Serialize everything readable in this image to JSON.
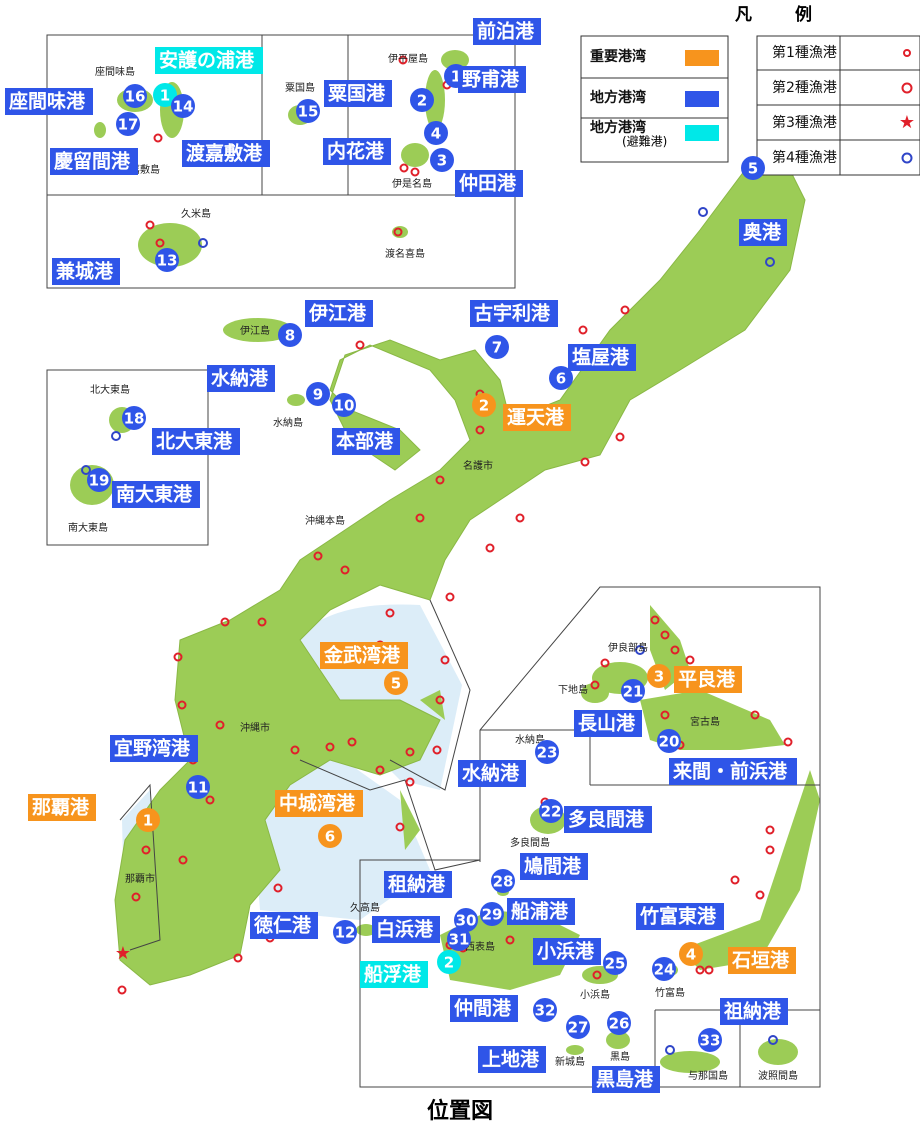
{
  "legend": {
    "title_left": "凡",
    "title_right": "例",
    "port_types": [
      {
        "label": "重要港湾",
        "color": "#f7941d"
      },
      {
        "label": "地方港湾",
        "color": "#2f55e8"
      },
      {
        "label": "地方港湾",
        "note": "(避難港)",
        "color": "#00e8e8"
      }
    ],
    "fishing_ports": [
      {
        "label": "第1種漁港",
        "symbol": "small-circle",
        "color": "#e0202a"
      },
      {
        "label": "第2種漁港",
        "symbol": "circle",
        "color": "#e0202a"
      },
      {
        "label": "第3種漁港",
        "symbol": "star",
        "color": "#e0202a"
      },
      {
        "label": "第4種漁港",
        "symbol": "circle",
        "color": "#2f45c8"
      }
    ]
  },
  "ports": [
    {
      "label": "運天港",
      "number": 2,
      "color": "#f7941d"
    },
    {
      "label": "金武湾港",
      "number": 5,
      "color": "#f7941d"
    },
    {
      "label": "中城湾港",
      "number": 6,
      "color": "#f7941d"
    },
    {
      "label": "那覇港",
      "number": 1,
      "color": "#f7941d"
    },
    {
      "label": "平良港",
      "number": 3,
      "color": "#f7941d"
    },
    {
      "label": "石垣港",
      "number": 4,
      "color": "#f7941d"
    },
    {
      "label": "安護の浦港",
      "number": 1,
      "color": "#00e8e8"
    },
    {
      "label": "船浮港",
      "number": 2,
      "color": "#00e8e8"
    },
    {
      "label": "前泊港",
      "number": 1,
      "color": "#2f55e8"
    },
    {
      "label": "野甫港",
      "number": 2,
      "color": "#2f55e8"
    },
    {
      "label": "仲田港",
      "number": 3,
      "color": "#2f55e8"
    },
    {
      "label": "内花港",
      "number": 4,
      "color": "#2f55e8"
    },
    {
      "label": "粟国港",
      "number": 15,
      "color": "#2f55e8"
    },
    {
      "label": "座間味港",
      "number": 16,
      "color": "#2f55e8"
    },
    {
      "label": "渡嘉敷港",
      "number": 14,
      "color": "#2f55e8"
    },
    {
      "label": "慶留間港",
      "number": 17,
      "color": "#2f55e8"
    },
    {
      "label": "兼城港",
      "number": 13,
      "color": "#2f55e8"
    },
    {
      "label": "奥港",
      "number": 5,
      "color": "#2f55e8"
    },
    {
      "label": "塩屋港",
      "number": 6,
      "color": "#2f55e8"
    },
    {
      "label": "古宇利港",
      "number": 7,
      "color": "#2f55e8"
    },
    {
      "label": "伊江港",
      "number": 8,
      "color": "#2f55e8"
    },
    {
      "label": "水納港",
      "number": 9,
      "color": "#2f55e8"
    },
    {
      "label": "本部港",
      "number": 10,
      "color": "#2f55e8"
    },
    {
      "label": "北大東港",
      "number": 18,
      "color": "#2f55e8"
    },
    {
      "label": "南大東港",
      "number": 19,
      "color": "#2f55e8"
    },
    {
      "label": "宜野湾港",
      "number": 11,
      "color": "#2f55e8"
    },
    {
      "label": "徳仁港",
      "number": 12,
      "color": "#2f55e8"
    },
    {
      "label": "長山港",
      "number": 21,
      "color": "#2f55e8"
    },
    {
      "label": "来間・前浜港",
      "number": 20,
      "color": "#2f55e8"
    },
    {
      "label": "水納港",
      "number": 23,
      "color": "#2f55e8"
    },
    {
      "label": "多良間港",
      "number": 22,
      "color": "#2f55e8"
    },
    {
      "label": "鳩間港",
      "number": 28,
      "color": "#2f55e8"
    },
    {
      "label": "船浦港",
      "number": 29,
      "color": "#2f55e8"
    },
    {
      "label": "租納港",
      "number": 30,
      "color": "#2f55e8"
    },
    {
      "label": "白浜港",
      "number": 31,
      "color": "#2f55e8"
    },
    {
      "label": "小浜港",
      "number": 25,
      "color": "#2f55e8"
    },
    {
      "label": "竹富東港",
      "number": 24,
      "color": "#2f55e8"
    },
    {
      "label": "仲間港",
      "number": 32,
      "color": "#2f55e8"
    },
    {
      "label": "上地港",
      "number": 27,
      "color": "#2f55e8"
    },
    {
      "label": "黒島港",
      "number": 26,
      "color": "#2f55e8"
    },
    {
      "label": "祖納港",
      "number": 33,
      "color": "#2f55e8"
    }
  ],
  "places": [
    "座間味島",
    "渡嘉敷島",
    "粟国島",
    "伊平屋島",
    "伊是名島",
    "久米島",
    "渡名喜島",
    "伊江島",
    "水納島",
    "北大東島",
    "南大東島",
    "名護市",
    "沖縄本島",
    "沖縄市",
    "那覇市",
    "久高島",
    "伊良部島",
    "下地島",
    "宮古島",
    "水納島",
    "多良間島",
    "西表島",
    "小浜島",
    "竹富島",
    "黒島",
    "新城島",
    "与那国島",
    "波照間島"
  ],
  "caption": "位置図"
}
